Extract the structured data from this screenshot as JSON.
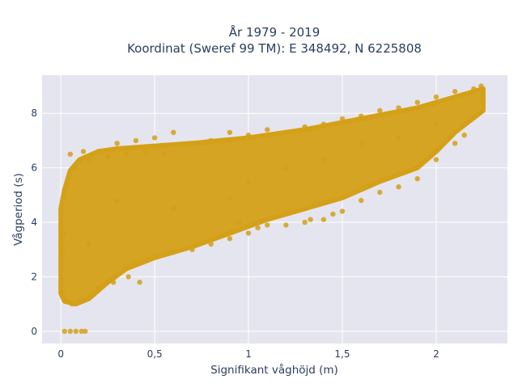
{
  "chart_data": {
    "type": "scatter",
    "title": "År 1979 - 2019",
    "subtitle": "Koordinat (Sweref 99 TM): E 348492, N 6225808",
    "xlabel": "Signifikant våghöjd (m)",
    "ylabel": "Vågperiod (s)",
    "xlim": [
      -0.1,
      2.38
    ],
    "ylim": [
      -0.45,
      9.4
    ],
    "x_ticks": [
      0,
      0.5,
      1,
      1.5,
      2
    ],
    "x_tick_labels": [
      "0",
      "0,5",
      "1",
      "1,5",
      "2"
    ],
    "y_ticks": [
      0,
      2,
      4,
      6,
      8
    ],
    "y_tick_labels": [
      "0",
      "2",
      "4",
      "6",
      "8"
    ],
    "grid": true,
    "legend": "none",
    "colors": {
      "marker": "#d4a017",
      "plot_bg": "#e5e5ef",
      "grid": "#ffffff",
      "text": "#2a3f5f"
    },
    "series": [
      {
        "values_description": "dense point cloud of wave height vs wave period",
        "points": [
          [
            0.02,
            0.0
          ],
          [
            0.05,
            0.0
          ],
          [
            0.08,
            0.0
          ],
          [
            0.11,
            0.0
          ],
          [
            0.13,
            0.0
          ],
          [
            0.01,
            1.5
          ],
          [
            0.01,
            2.9
          ],
          [
            0.02,
            3.6
          ],
          [
            0.03,
            5.3
          ],
          [
            0.05,
            6.5
          ],
          [
            0.08,
            6.0
          ],
          [
            0.1,
            6.2
          ],
          [
            0.12,
            6.6
          ],
          [
            0.15,
            6.3
          ],
          [
            0.2,
            6.6
          ],
          [
            0.25,
            6.4
          ],
          [
            0.3,
            6.9
          ],
          [
            0.35,
            6.5
          ],
          [
            0.4,
            7.0
          ],
          [
            0.45,
            6.6
          ],
          [
            0.5,
            7.1
          ],
          [
            0.55,
            6.5
          ],
          [
            0.6,
            7.3
          ],
          [
            0.7,
            6.9
          ],
          [
            0.8,
            7.0
          ],
          [
            0.9,
            7.3
          ],
          [
            1.0,
            7.2
          ],
          [
            1.1,
            7.4
          ],
          [
            1.2,
            7.3
          ],
          [
            1.3,
            7.5
          ],
          [
            1.4,
            7.6
          ],
          [
            1.5,
            7.8
          ],
          [
            1.6,
            7.9
          ],
          [
            1.7,
            8.1
          ],
          [
            1.8,
            8.2
          ],
          [
            1.9,
            8.4
          ],
          [
            2.0,
            8.6
          ],
          [
            2.1,
            8.8
          ],
          [
            2.2,
            8.9
          ],
          [
            2.24,
            9.0
          ],
          [
            0.03,
            1.1
          ],
          [
            0.06,
            1.0
          ],
          [
            0.1,
            1.1
          ],
          [
            0.15,
            1.3
          ],
          [
            0.2,
            1.6
          ],
          [
            0.25,
            1.8
          ],
          [
            0.3,
            2.1
          ],
          [
            0.35,
            2.3
          ],
          [
            0.4,
            2.5
          ],
          [
            0.5,
            2.8
          ],
          [
            0.6,
            2.9
          ],
          [
            0.7,
            3.0
          ],
          [
            0.8,
            3.2
          ],
          [
            0.9,
            3.4
          ],
          [
            1.0,
            3.6
          ],
          [
            1.05,
            3.8
          ],
          [
            1.1,
            3.9
          ],
          [
            1.2,
            3.9
          ],
          [
            1.3,
            4.0
          ],
          [
            1.4,
            4.1
          ],
          [
            1.45,
            4.3
          ],
          [
            1.5,
            4.4
          ],
          [
            1.6,
            4.8
          ],
          [
            1.7,
            5.1
          ],
          [
            1.8,
            5.3
          ],
          [
            1.9,
            5.6
          ],
          [
            2.0,
            6.3
          ],
          [
            2.1,
            6.9
          ],
          [
            2.15,
            7.2
          ],
          [
            2.25,
            8.6
          ],
          [
            0.28,
            1.8
          ],
          [
            0.36,
            2.0
          ],
          [
            0.42,
            1.8
          ],
          [
            0.95,
            4.0
          ],
          [
            1.33,
            4.1
          ],
          [
            0.3,
            4.8
          ],
          [
            0.6,
            4.5
          ],
          [
            0.9,
            4.9
          ],
          [
            1.0,
            5.5
          ],
          [
            1.2,
            6.0
          ],
          [
            1.4,
            6.3
          ],
          [
            1.6,
            6.9
          ],
          [
            1.8,
            7.1
          ],
          [
            2.0,
            7.6
          ],
          [
            0.15,
            3.2
          ]
        ]
      }
    ]
  }
}
